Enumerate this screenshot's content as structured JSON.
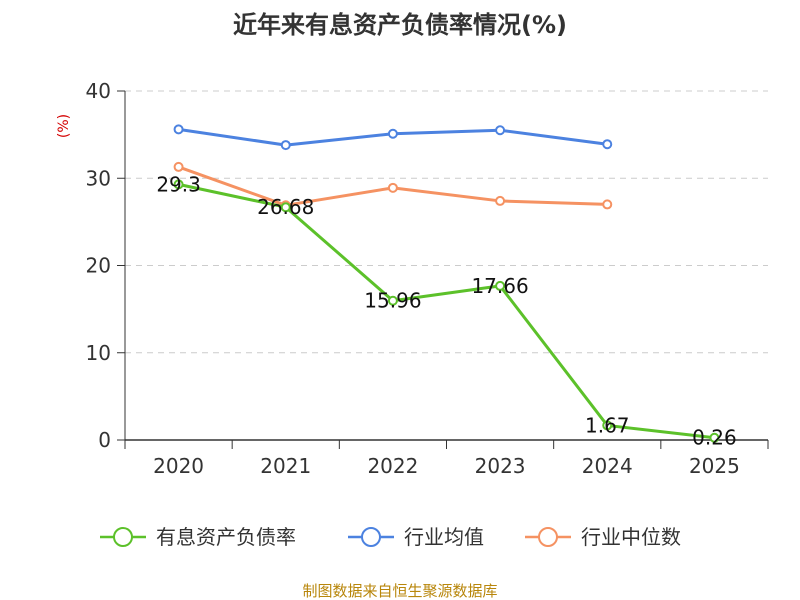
{
  "chart_data": {
    "type": "line",
    "title": "近年来有息资产负债率情况(%)",
    "ylabel": "(%)",
    "xlabel": "",
    "categories": [
      "2020",
      "2021",
      "2022",
      "2023",
      "2024",
      "2025"
    ],
    "ylim": [
      0,
      40
    ],
    "yticks": [
      "0",
      "10",
      "20",
      "30",
      "40"
    ],
    "grid": true,
    "legend_position": "bottom",
    "series": [
      {
        "name": "有息资产负债率",
        "color": "#5cc12a",
        "values": [
          29.3,
          26.68,
          15.96,
          17.66,
          1.67,
          0.26
        ],
        "labels": [
          "29.3",
          "26.68",
          "15.96",
          "17.66",
          "1.67",
          "0.26"
        ]
      },
      {
        "name": "行业均值",
        "color": "#4c82e0",
        "values": [
          35.6,
          33.8,
          35.1,
          35.5,
          33.9,
          null
        ]
      },
      {
        "name": "行业中位数",
        "color": "#f59262",
        "values": [
          31.3,
          26.9,
          28.9,
          27.4,
          27.0,
          null
        ]
      }
    ]
  },
  "source": "制图数据来自恒生聚源数据库"
}
